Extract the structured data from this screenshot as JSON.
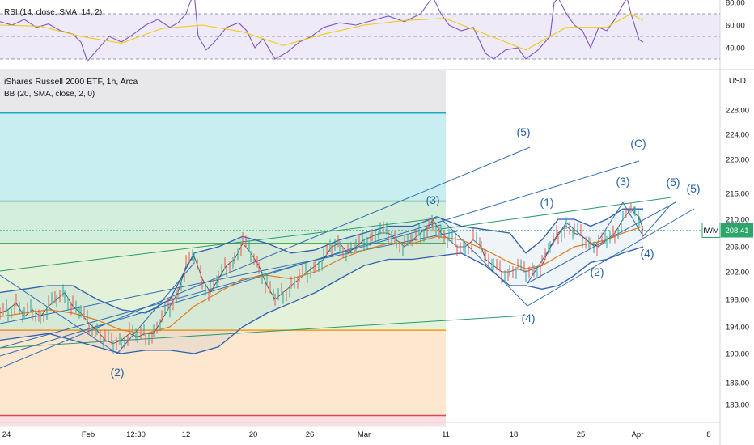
{
  "title": "iShares Russell 2000 ETF, 1h, Arca",
  "bb_legend": "BB (20, SMA, close, 2, 0)",
  "rsi_legend": "RSI (14, close, SMA, 14, 2)",
  "currency": "USD",
  "ticker": "IWM",
  "last_price": "208.41",
  "chart_data": [
    {
      "type": "line",
      "panel": "price",
      "title": "iShares Russell 2000 ETF, 1h, Arca",
      "ylabel": "USD",
      "ylim": [
        182,
        232
      ],
      "yticks": [
        183,
        186,
        190,
        194,
        198,
        202,
        206,
        210,
        215,
        220,
        224,
        228
      ],
      "xticks": [
        "24",
        "Feb",
        "12:30",
        "12",
        "20",
        "26",
        "Mar",
        "11",
        "18",
        "25",
        "Apr",
        "8"
      ],
      "series": [
        {
          "name": "IWM",
          "values": [
            [
              0,
              196
            ],
            [
              10,
              196.5
            ],
            [
              20,
              197.5
            ],
            [
              30,
              195.5
            ],
            [
              40,
              196.5
            ],
            [
              50,
              195.5
            ],
            [
              60,
              197
            ],
            [
              70,
              198
            ],
            [
              80,
              199
            ],
            [
              90,
              197
            ],
            [
              100,
              196
            ],
            [
              110,
              194.5
            ],
            [
              120,
              193.5
            ],
            [
              130,
              192
            ],
            [
              140,
              191.5
            ],
            [
              150,
              192
            ],
            [
              160,
              193
            ],
            [
              170,
              192.5
            ],
            [
              180,
              193
            ],
            [
              190,
              193
            ],
            [
              200,
              195
            ],
            [
              210,
              197
            ],
            [
              220,
              199
            ],
            [
              230,
              203
            ],
            [
              240,
              204.5
            ],
            [
              250,
              201
            ],
            [
              260,
              199
            ],
            [
              270,
              201
            ],
            [
              280,
              203
            ],
            [
              290,
              204
            ],
            [
              300,
              206.5
            ],
            [
              310,
              205
            ],
            [
              320,
              203
            ],
            [
              330,
              200
            ],
            [
              340,
              198
            ],
            [
              350,
              199
            ],
            [
              360,
              200
            ],
            [
              370,
              201
            ],
            [
              380,
              202
            ],
            [
              390,
              203
            ],
            [
              400,
              204
            ],
            [
              410,
              206
            ],
            [
              420,
              206.5
            ],
            [
              430,
              205
            ],
            [
              440,
              206
            ],
            [
              450,
              207
            ],
            [
              460,
              207.5
            ],
            [
              470,
              208
            ],
            [
              480,
              208
            ],
            [
              490,
              207
            ],
            [
              500,
              206
            ],
            [
              510,
              207
            ],
            [
              520,
              208
            ],
            [
              530,
              209
            ],
            [
              535,
              210
            ],
            [
              545,
              208
            ],
            [
              555,
              207
            ],
            [
              565,
              206
            ],
            [
              575,
              206
            ],
            [
              585,
              207
            ],
            [
              595,
              206
            ],
            [
              600,
              204
            ],
            [
              610,
              203
            ],
            [
              620,
              202
            ],
            [
              630,
              202
            ],
            [
              640,
              202.5
            ],
            [
              650,
              202
            ],
            [
              660,
              202.5
            ],
            [
              670,
              203
            ],
            [
              680,
              206
            ],
            [
              690,
              208
            ],
            [
              700,
              209
            ],
            [
              710,
              208
            ],
            [
              720,
              207.5
            ],
            [
              730,
              206.5
            ],
            [
              740,
              206
            ],
            [
              750,
              207
            ],
            [
              760,
              208
            ],
            [
              770,
              210
            ],
            [
              780,
              212
            ],
            [
              785,
              211
            ],
            [
              790,
              210.5
            ],
            [
              795,
              208.4
            ]
          ]
        },
        {
          "name": "BB basis",
          "values": [
            [
              0,
              195.5
            ],
            [
              30,
              196
            ],
            [
              60,
              196.5
            ],
            [
              90,
              196
            ],
            [
              120,
              195
            ],
            [
              150,
              193.5
            ],
            [
              180,
              193
            ],
            [
              210,
              194
            ],
            [
              240,
              197
            ],
            [
              270,
              199
            ],
            [
              300,
              201
            ],
            [
              330,
              201.5
            ],
            [
              360,
              201
            ],
            [
              390,
              202
            ],
            [
              420,
              204
            ],
            [
              450,
              205.5
            ],
            [
              480,
              206.5
            ],
            [
              510,
              206.5
            ],
            [
              540,
              207.5
            ],
            [
              570,
              207
            ],
            [
              600,
              205.5
            ],
            [
              630,
              203.5
            ],
            [
              650,
              202.5
            ],
            [
              670,
              203
            ],
            [
              690,
              204.5
            ],
            [
              710,
              206
            ],
            [
              730,
              206.5
            ],
            [
              750,
              207
            ],
            [
              770,
              208
            ],
            [
              795,
              209
            ]
          ]
        },
        {
          "name": "BB upper",
          "values": [
            [
              0,
              199
            ],
            [
              30,
              199.5
            ],
            [
              60,
              200
            ],
            [
              90,
              200
            ],
            [
              120,
              198
            ],
            [
              150,
              196.5
            ],
            [
              180,
              196
            ],
            [
              210,
              198
            ],
            [
              240,
              205
            ],
            [
              270,
              206
            ],
            [
              300,
              207.5
            ],
            [
              330,
              206.5
            ],
            [
              360,
              205
            ],
            [
              390,
              205.5
            ],
            [
              420,
              207
            ],
            [
              450,
              208
            ],
            [
              480,
              209
            ],
            [
              510,
              209
            ],
            [
              540,
              210.5
            ],
            [
              570,
              209
            ],
            [
              600,
              208.5
            ],
            [
              630,
              208
            ],
            [
              650,
              205
            ],
            [
              670,
              207
            ],
            [
              690,
              210
            ],
            [
              710,
              210
            ],
            [
              730,
              209
            ],
            [
              750,
              210
            ],
            [
              770,
              212
            ],
            [
              795,
              212
            ]
          ]
        },
        {
          "name": "BB lower",
          "values": [
            [
              0,
              192
            ],
            [
              30,
              192.5
            ],
            [
              60,
              193
            ],
            [
              90,
              192
            ],
            [
              120,
              191
            ],
            [
              150,
              190
            ],
            [
              180,
              190.5
            ],
            [
              210,
              190.5
            ],
            [
              240,
              190
            ],
            [
              270,
              191
            ],
            [
              300,
              194
            ],
            [
              330,
              196
            ],
            [
              360,
              197.5
            ],
            [
              390,
              199
            ],
            [
              420,
              201
            ],
            [
              450,
              203
            ],
            [
              480,
              204
            ],
            [
              510,
              204
            ],
            [
              540,
              204.5
            ],
            [
              570,
              205
            ],
            [
              600,
              203
            ],
            [
              630,
              200
            ],
            [
              650,
              200
            ],
            [
              670,
              199.5
            ],
            [
              690,
              200
            ],
            [
              710,
              201.5
            ],
            [
              730,
              203.5
            ],
            [
              750,
              204
            ],
            [
              770,
              205
            ],
            [
              795,
              206
            ]
          ]
        }
      ],
      "levels": [
        227.5,
        213.5,
        206.5,
        193.5,
        181.5
      ],
      "wave_labels": [
        "(2)",
        "(3)",
        "(5)",
        "(C)",
        "(1)",
        "(4)",
        "(2)",
        "(3)",
        "(5)",
        "(5)",
        "(4)"
      ]
    },
    {
      "type": "line",
      "panel": "rsi",
      "title": "RSI (14, close, SMA, 14, 2)",
      "ylim": [
        30,
        88
      ],
      "yticks": [
        40,
        60,
        80
      ],
      "levels": [
        70,
        50,
        30
      ],
      "series": [
        {
          "name": "RSI",
          "values": [
            [
              0,
              63
            ],
            [
              15,
              60
            ],
            [
              30,
              65
            ],
            [
              45,
              58
            ],
            [
              60,
              61
            ],
            [
              75,
              55
            ],
            [
              90,
              52
            ],
            [
              100,
              45
            ],
            [
              108,
              28
            ],
            [
              120,
              38
            ],
            [
              135,
              50
            ],
            [
              150,
              45
            ],
            [
              165,
              52
            ],
            [
              180,
              60
            ],
            [
              195,
              65
            ],
            [
              210,
              58
            ],
            [
              220,
              62
            ],
            [
              230,
              70
            ],
            [
              235,
              80
            ],
            [
              240,
              88
            ],
            [
              245,
              50
            ],
            [
              255,
              38
            ],
            [
              265,
              45
            ],
            [
              280,
              58
            ],
            [
              295,
              62
            ],
            [
              305,
              55
            ],
            [
              315,
              40
            ],
            [
              325,
              48
            ],
            [
              340,
              30
            ],
            [
              355,
              36
            ],
            [
              370,
              45
            ],
            [
              385,
              50
            ],
            [
              400,
              58
            ],
            [
              420,
              62
            ],
            [
              440,
              60
            ],
            [
              460,
              64
            ],
            [
              480,
              68
            ],
            [
              500,
              63
            ],
            [
              520,
              70
            ],
            [
              535,
              85
            ],
            [
              545,
              70
            ],
            [
              555,
              60
            ],
            [
              570,
              55
            ],
            [
              585,
              58
            ],
            [
              600,
              35
            ],
            [
              610,
              30
            ],
            [
              625,
              38
            ],
            [
              640,
              40
            ],
            [
              650,
              30
            ],
            [
              665,
              38
            ],
            [
              680,
              50
            ],
            [
              685,
              80
            ],
            [
              690,
              84
            ],
            [
              700,
              70
            ],
            [
              710,
              60
            ],
            [
              720,
              55
            ],
            [
              730,
              40
            ],
            [
              740,
              58
            ],
            [
              750,
              55
            ],
            [
              760,
              65
            ],
            [
              770,
              78
            ],
            [
              775,
              84
            ],
            [
              780,
              70
            ],
            [
              790,
              47
            ],
            [
              795,
              45
            ]
          ]
        },
        {
          "name": "RSI MA",
          "values": [
            [
              0,
              60
            ],
            [
              50,
              59
            ],
            [
              100,
              50
            ],
            [
              150,
              44
            ],
            [
              200,
              57
            ],
            [
              250,
              60
            ],
            [
              300,
              54
            ],
            [
              350,
              42
            ],
            [
              400,
              52
            ],
            [
              450,
              60
            ],
            [
              500,
              64
            ],
            [
              550,
              66
            ],
            [
              600,
              52
            ],
            [
              650,
              38
            ],
            [
              700,
              58
            ],
            [
              750,
              58
            ],
            [
              780,
              70
            ],
            [
              795,
              64
            ]
          ]
        }
      ]
    }
  ]
}
